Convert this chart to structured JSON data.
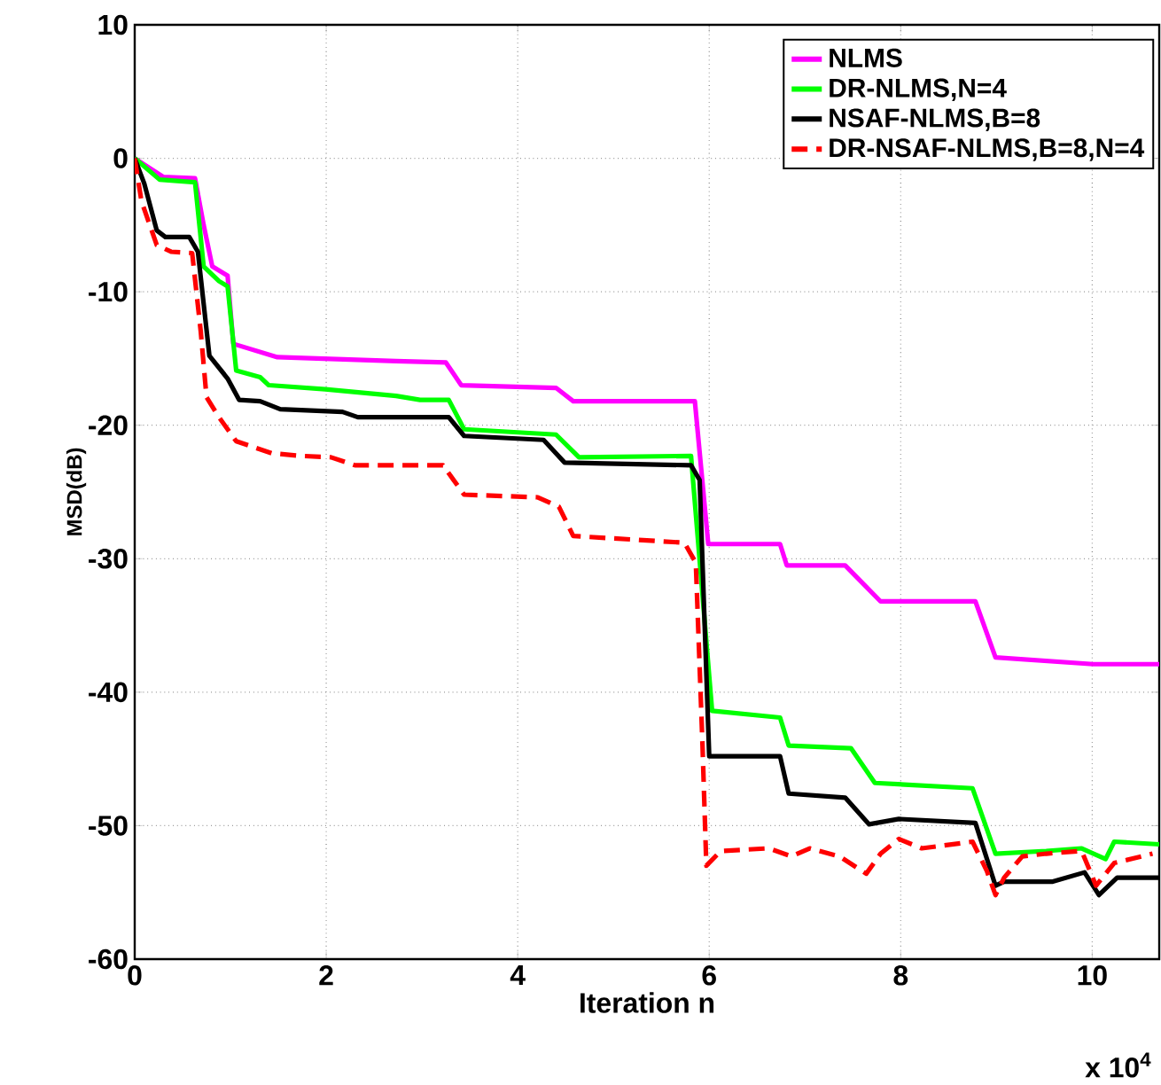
{
  "chart_data": {
    "type": "line",
    "xlabel": "Iteration n",
    "ylabel": "MSD(dB)",
    "annotations": [
      "x 10$^{4}$"
    ],
    "xlim": [
      0,
      10.7
    ],
    "ylim": [
      -60,
      10
    ],
    "xticks": [
      0,
      2,
      4,
      6,
      8,
      10
    ],
    "yticks": [
      -60,
      -50,
      -40,
      -30,
      -20,
      -10,
      0,
      10
    ],
    "grid": true,
    "legend": "top right",
    "line_style": "solid",
    "series": [
      {
        "name": "NLMS",
        "color": "#ff00ff",
        "x": [
          0,
          0.3,
          0.63,
          0.72,
          0.81,
          0.97,
          1.03,
          1.49,
          2.73,
          3.25,
          3.41,
          4.4,
          4.58,
          5.85,
          5.99,
          6.74,
          6.81,
          7.42,
          7.79,
          8.78,
          8.99,
          10.01,
          10.7
        ],
        "values": [
          0,
          -1.4,
          -1.5,
          -5,
          -8.1,
          -8.8,
          -13.9,
          -14.9,
          -15.2,
          -15.3,
          -17.0,
          -17.2,
          -18.2,
          -18.2,
          -28.9,
          -28.9,
          -30.5,
          -30.5,
          -33.2,
          -33.2,
          -37.4,
          -37.9,
          -37.9
        ]
      },
      {
        "name": "DR-NLMS,N=4",
        "color": "#00ff00",
        "x": [
          0,
          0.26,
          0.63,
          0.72,
          0.88,
          0.97,
          1.06,
          1.31,
          1.4,
          1.99,
          2.73,
          2.98,
          3.28,
          3.44,
          4.4,
          4.64,
          5.81,
          6.03,
          6.74,
          6.83,
          7.48,
          7.73,
          8.75,
          8.99,
          9.52,
          9.89,
          10.14,
          10.23,
          10.7
        ],
        "values": [
          0,
          -1.6,
          -1.8,
          -8.1,
          -9.2,
          -9.6,
          -15.9,
          -16.4,
          -17.0,
          -17.3,
          -17.8,
          -18.1,
          -18.1,
          -20.3,
          -20.7,
          -22.4,
          -22.3,
          -41.4,
          -41.9,
          -44.0,
          -44.2,
          -46.8,
          -47.2,
          -52.1,
          -51.9,
          -51.7,
          -52.5,
          -51.2,
          -51.4
        ]
      },
      {
        "name": "NSAF-NLMS,B=8",
        "color": "#000000",
        "x": [
          0,
          0.1,
          0.23,
          0.32,
          0.57,
          0.66,
          0.78,
          0.97,
          1.09,
          1.31,
          1.52,
          2.17,
          2.33,
          3.28,
          3.44,
          4.27,
          4.49,
          5.81,
          5.9,
          6.0,
          6.74,
          6.83,
          7.42,
          7.67,
          7.98,
          8.78,
          8.99,
          9.08,
          9.58,
          9.92,
          10.07,
          10.26,
          10.7
        ],
        "values": [
          0,
          -1.9,
          -5.4,
          -5.9,
          -5.9,
          -7.0,
          -14.8,
          -16.5,
          -18.1,
          -18.2,
          -18.8,
          -19.0,
          -19.4,
          -19.4,
          -20.8,
          -21.1,
          -22.8,
          -23.0,
          -24.1,
          -44.8,
          -44.8,
          -47.6,
          -47.9,
          -49.9,
          -49.5,
          -49.8,
          -54.5,
          -54.2,
          -54.2,
          -53.5,
          -55.2,
          -53.9,
          -53.9
        ]
      },
      {
        "name": "DR-NSAF-NLMS,B=8,N=4",
        "color": "#ff0000",
        "line_style": "dashed",
        "x": [
          0,
          0.07,
          0.23,
          0.38,
          0.6,
          0.69,
          0.75,
          0.88,
          1.06,
          1.43,
          1.74,
          2.05,
          2.3,
          3.22,
          3.44,
          4.21,
          4.43,
          4.58,
          5.74,
          5.86,
          5.93,
          5.97,
          6.12,
          6.62,
          6.86,
          7.05,
          7.36,
          7.64,
          7.79,
          7.98,
          8.22,
          8.75,
          8.9,
          8.99,
          9.08,
          9.27,
          9.52,
          9.89,
          10.04,
          10.23,
          10.63
        ],
        "values": [
          0,
          -3.2,
          -6.5,
          -7.0,
          -7.1,
          -13.0,
          -17.9,
          -19.4,
          -21.2,
          -22.1,
          -22.3,
          -22.4,
          -23.0,
          -23.0,
          -25.2,
          -25.4,
          -26.1,
          -28.3,
          -28.8,
          -30.3,
          -44,
          -53.0,
          -51.9,
          -51.7,
          -52.3,
          -51.7,
          -52.3,
          -53.6,
          -52.1,
          -51.0,
          -51.7,
          -51.2,
          -53.4,
          -55.2,
          -53.9,
          -52.3,
          -52.1,
          -51.9,
          -54.5,
          -52.8,
          -52.1
        ]
      }
    ]
  }
}
